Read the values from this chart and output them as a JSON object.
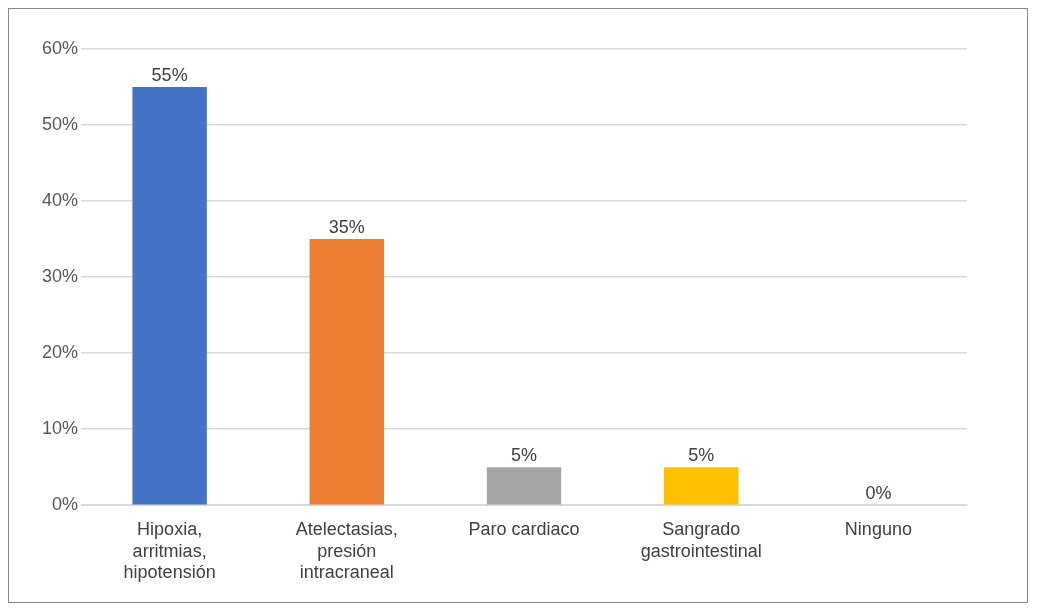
{
  "chart_data": {
    "type": "bar",
    "categories": [
      "Hipoxia, arritmias, hipotensión",
      "Atelectasias, presión intracraneal",
      "Paro cardiaco",
      "Sangrado gastrointestinal",
      "Ninguno"
    ],
    "values": [
      55,
      35,
      5,
      5,
      0
    ],
    "colors": [
      "#4472c4",
      "#ed7d31",
      "#a5a5a5",
      "#ffc000",
      "#41719c"
    ],
    "value_labels": [
      "55%",
      "35%",
      "5%",
      "5%",
      "0%"
    ],
    "ylim": [
      0,
      60
    ],
    "yticks": [
      {
        "value": 0,
        "label": "0%"
      },
      {
        "value": 10,
        "label": "10%"
      },
      {
        "value": 20,
        "label": "20%"
      },
      {
        "value": 30,
        "label": "30%"
      },
      {
        "value": 40,
        "label": "40%"
      },
      {
        "value": 50,
        "label": "50%"
      },
      {
        "value": 60,
        "label": "60%"
      }
    ],
    "grid": "y"
  }
}
